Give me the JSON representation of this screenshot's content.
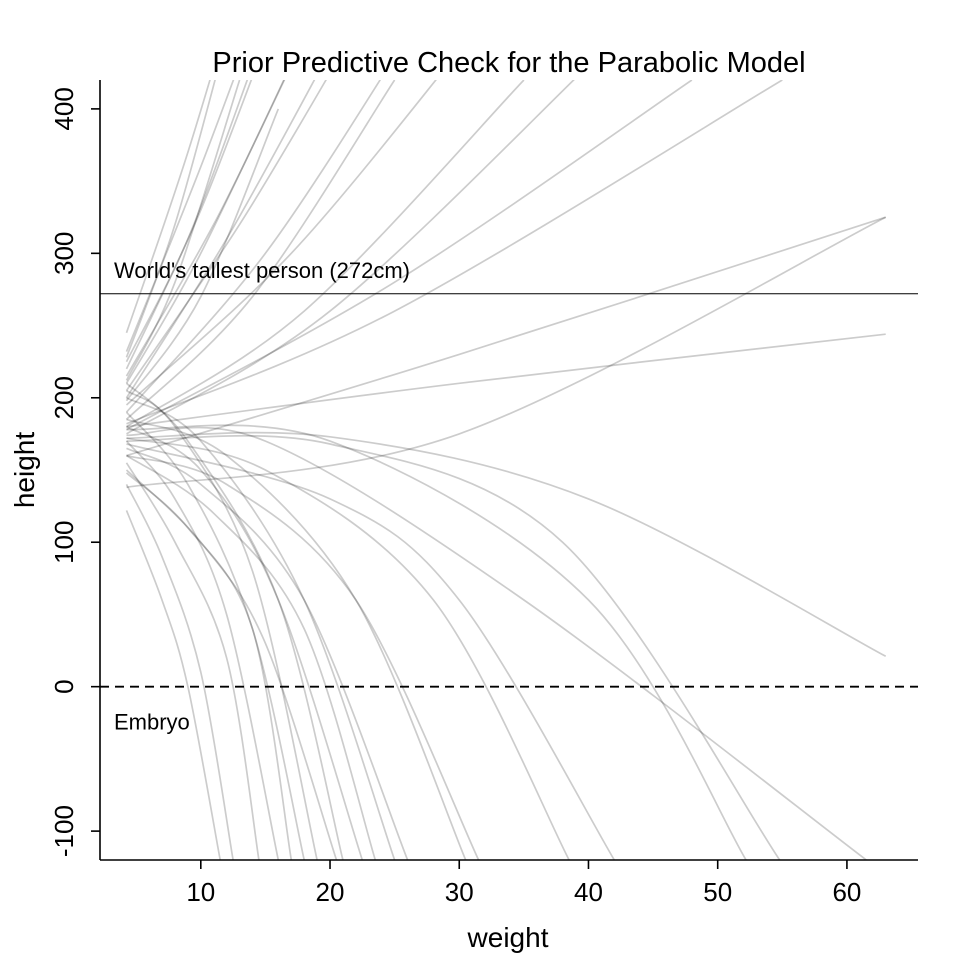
{
  "chart_data": {
    "type": "line",
    "title": "Prior Predictive Check for the Parabolic Model",
    "xlabel": "weight",
    "ylabel": "height",
    "xlim": [
      2.2,
      65.5
    ],
    "ylim": [
      -120,
      420
    ],
    "x_ticks": [
      10,
      20,
      30,
      40,
      50,
      60
    ],
    "y_ticks": [
      -100,
      0,
      100,
      200,
      300,
      400
    ],
    "x_tick_labels": [
      "10",
      "20",
      "30",
      "40",
      "50",
      "60"
    ],
    "y_tick_labels": [
      "-100",
      "0",
      "100",
      "200",
      "300",
      "400"
    ],
    "grid": false,
    "reference_lines": [
      {
        "y": 272,
        "style": "solid",
        "label": "World's tallest person (272cm)"
      },
      {
        "y": 0,
        "style": "dashed",
        "label": "Embryo"
      }
    ],
    "x_range": [
      4.25,
      62.99
    ],
    "series": [
      {
        "values": [
          [
            4.25,
            232
          ],
          [
            10,
            360
          ],
          [
            15,
            480
          ]
        ]
      },
      {
        "values": [
          [
            4.25,
            245
          ],
          [
            9,
            370
          ],
          [
            14,
            520
          ]
        ]
      },
      {
        "values": [
          [
            4.25,
            220
          ],
          [
            10,
            330
          ],
          [
            16,
            470
          ]
        ]
      },
      {
        "values": [
          [
            4.25,
            210
          ],
          [
            10,
            300
          ],
          [
            18,
            450
          ]
        ]
      },
      {
        "values": [
          [
            4.25,
            228
          ],
          [
            8,
            320
          ],
          [
            12,
            450
          ]
        ]
      },
      {
        "values": [
          [
            4.25,
            200
          ],
          [
            12,
            310
          ],
          [
            20,
            440
          ]
        ]
      },
      {
        "values": [
          [
            4.25,
            190
          ],
          [
            15,
            300
          ],
          [
            26,
            450
          ]
        ]
      },
      {
        "values": [
          [
            4.25,
            215
          ],
          [
            11,
            320
          ],
          [
            17,
            430
          ]
        ]
      },
      {
        "values": [
          [
            4.25,
            205
          ],
          [
            13,
            320
          ],
          [
            21,
            440
          ]
        ]
      },
      {
        "values": [
          [
            4.25,
            225
          ],
          [
            9,
            310
          ],
          [
            14,
            430
          ]
        ]
      },
      {
        "values": [
          [
            4.25,
            198
          ],
          [
            10,
            270
          ],
          [
            16,
            400
          ]
        ]
      },
      {
        "values": [
          [
            4.25,
            212
          ],
          [
            8,
            280
          ],
          [
            13,
            420
          ]
        ]
      },
      {
        "values": [
          [
            4.25,
            185
          ],
          [
            14,
            270
          ],
          [
            25,
            420
          ]
        ]
      },
      {
        "values": [
          [
            4.25,
            195
          ],
          [
            17,
            300
          ],
          [
            30,
            440
          ]
        ]
      },
      {
        "values": [
          [
            4.25,
            180
          ],
          [
            18,
            260
          ],
          [
            35,
            420
          ]
        ]
      },
      {
        "values": [
          [
            4.25,
            175
          ],
          [
            20,
            260
          ],
          [
            40,
            430
          ]
        ]
      },
      {
        "values": [
          [
            4.25,
            178
          ],
          [
            25,
            280
          ],
          [
            48,
            420
          ]
        ]
      },
      {
        "values": [
          [
            4.25,
            182
          ],
          [
            25,
            260
          ],
          [
            55,
            420
          ]
        ]
      },
      {
        "values": [
          [
            4.25,
            160
          ],
          [
            30,
            230
          ],
          [
            63,
            325
          ]
        ]
      },
      {
        "values": [
          [
            4.25,
            180
          ],
          [
            30,
            210
          ],
          [
            63,
            244
          ]
        ]
      },
      {
        "values": [
          [
            4.25,
            138
          ],
          [
            30,
            175
          ],
          [
            63,
            325
          ]
        ]
      },
      {
        "values": [
          [
            4.25,
            172
          ],
          [
            20,
            173
          ],
          [
            40,
            130
          ],
          [
            63,
            21
          ]
        ]
      },
      {
        "values": [
          [
            4.25,
            170
          ],
          [
            20,
            168
          ],
          [
            38,
            100
          ],
          [
            54.8,
            -120
          ]
        ]
      },
      {
        "values": [
          [
            4.25,
            178
          ],
          [
            20,
            170
          ],
          [
            40,
            60
          ],
          [
            52.2,
            -120
          ]
        ]
      },
      {
        "values": [
          [
            4.25,
            174
          ],
          [
            15,
            170
          ],
          [
            35,
            60
          ],
          [
            61.5,
            -120
          ]
        ]
      },
      {
        "values": [
          [
            4.25,
            168
          ],
          [
            20,
            130
          ],
          [
            30,
            60
          ],
          [
            42,
            -120
          ]
        ]
      },
      {
        "values": [
          [
            4.25,
            172
          ],
          [
            15,
            150
          ],
          [
            28,
            60
          ],
          [
            38.5,
            -120
          ]
        ]
      },
      {
        "values": [
          [
            4.25,
            160
          ],
          [
            12,
            140
          ],
          [
            22,
            60
          ],
          [
            31.5,
            -120
          ]
        ]
      },
      {
        "values": [
          [
            4.25,
            185
          ],
          [
            12,
            160
          ],
          [
            22,
            60
          ],
          [
            30.5,
            -120
          ]
        ]
      },
      {
        "values": [
          [
            4.25,
            165
          ],
          [
            10,
            140
          ],
          [
            18,
            60
          ],
          [
            26,
            -120
          ]
        ]
      },
      {
        "values": [
          [
            4.25,
            200
          ],
          [
            10,
            170
          ],
          [
            18,
            60
          ],
          [
            25,
            -120
          ]
        ]
      },
      {
        "values": [
          [
            4.25,
            210
          ],
          [
            9,
            170
          ],
          [
            16,
            60
          ],
          [
            21,
            -120
          ]
        ]
      },
      {
        "values": [
          [
            4.25,
            150
          ],
          [
            10,
            100
          ],
          [
            15,
            30
          ],
          [
            20.5,
            -120
          ]
        ]
      },
      {
        "values": [
          [
            4.25,
            190
          ],
          [
            9,
            140
          ],
          [
            14,
            40
          ],
          [
            18,
            -120
          ]
        ]
      },
      {
        "values": [
          [
            4.25,
            170
          ],
          [
            8,
            130
          ],
          [
            12,
            50
          ],
          [
            16,
            -120
          ]
        ]
      },
      {
        "values": [
          [
            4.25,
            155
          ],
          [
            8,
            100
          ],
          [
            12,
            20
          ],
          [
            14.5,
            -120
          ]
        ]
      },
      {
        "values": [
          [
            4.25,
            140
          ],
          [
            7,
            90
          ],
          [
            10,
            10
          ],
          [
            12.5,
            -120
          ]
        ]
      },
      {
        "values": [
          [
            4.25,
            122
          ],
          [
            7,
            60
          ],
          [
            9,
            0
          ],
          [
            11.5,
            -120
          ]
        ]
      },
      {
        "values": [
          [
            4.25,
            180
          ],
          [
            10,
            150
          ],
          [
            16,
            60
          ],
          [
            22.5,
            -120
          ]
        ]
      },
      {
        "values": [
          [
            4.25,
            160
          ],
          [
            11,
            120
          ],
          [
            18,
            40
          ],
          [
            23.5,
            -120
          ]
        ]
      },
      {
        "values": [
          [
            4.25,
            205
          ],
          [
            8,
            180
          ],
          [
            14,
            80
          ],
          [
            19,
            -120
          ]
        ]
      },
      {
        "values": [
          [
            4.25,
            148
          ],
          [
            9,
            110
          ],
          [
            14,
            40
          ],
          [
            17,
            -120
          ]
        ]
      }
    ]
  }
}
